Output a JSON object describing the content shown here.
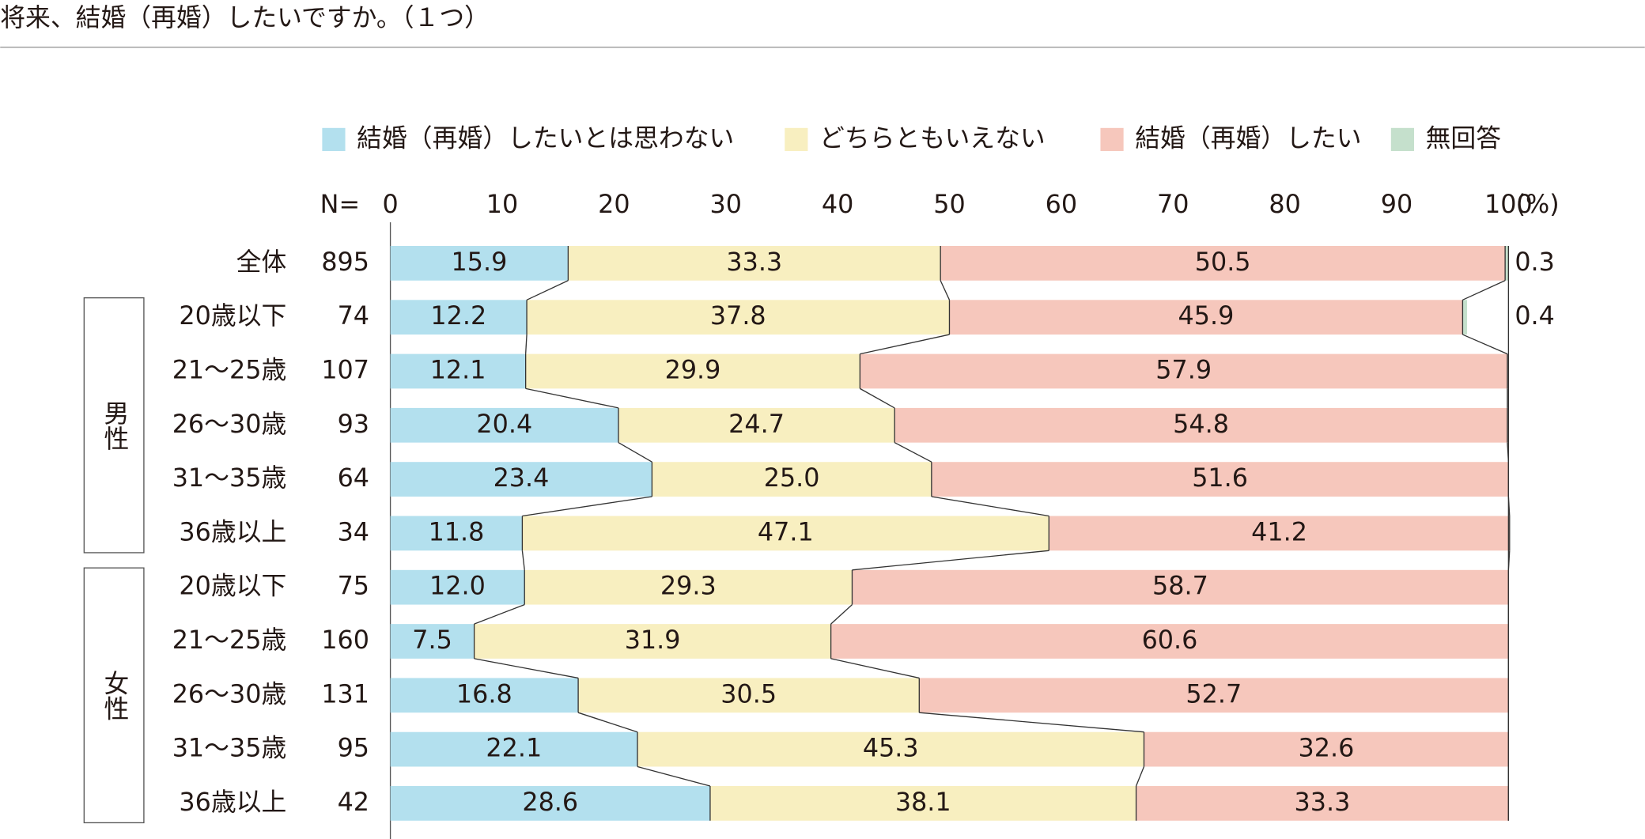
{
  "chart_data": {
    "type": "bar",
    "orientation": "horizontal",
    "stacked": true,
    "title": "将来、結婚（再婚）したいですか。（１つ）",
    "n_label": "N=",
    "x_unit": "(%)",
    "xlim": [
      0,
      100
    ],
    "xticks": [
      0,
      10,
      20,
      30,
      40,
      50,
      60,
      70,
      80,
      90,
      100
    ],
    "categories": [
      "全体",
      "20歳以下",
      "21～25歳",
      "26～30歳",
      "31～35歳",
      "36歳以上",
      "20歳以下",
      "21～25歳",
      "26～30歳",
      "31～35歳",
      "36歳以上"
    ],
    "groups": [
      null,
      "男性",
      "男性",
      "男性",
      "男性",
      "男性",
      "女性",
      "女性",
      "女性",
      "女性",
      "女性"
    ],
    "n": [
      895,
      74,
      107,
      93,
      64,
      34,
      75,
      160,
      131,
      95,
      42
    ],
    "series": [
      {
        "name": "結婚（再婚）したいとは思わない",
        "color": "#b3e0ee",
        "values": [
          15.9,
          12.2,
          12.1,
          20.4,
          23.4,
          11.8,
          12.0,
          7.5,
          16.8,
          22.1,
          28.6
        ],
        "value_labels": [
          "15.9",
          "12.2",
          "12.1",
          "20.4",
          "23.4",
          "11.8",
          "12.0",
          "7.5",
          "16.8",
          "22.1",
          "28.6"
        ]
      },
      {
        "name": "どちらともいえない",
        "color": "#f8efc0",
        "values": [
          33.3,
          37.8,
          29.9,
          24.7,
          25.0,
          47.1,
          29.3,
          31.9,
          30.5,
          45.3,
          38.1
        ],
        "value_labels": [
          "33.3",
          "37.8",
          "29.9",
          "24.7",
          "25.0",
          "47.1",
          "29.3",
          "31.9",
          "30.5",
          "45.3",
          "38.1"
        ]
      },
      {
        "name": "結婚（再婚）したい",
        "color": "#f6c7bc",
        "values": [
          50.5,
          45.9,
          57.9,
          54.8,
          51.6,
          41.2,
          58.7,
          60.6,
          52.7,
          32.6,
          33.3
        ]
      },
      {
        "name": "無回答",
        "color": "#c5e0cc",
        "values": [
          0.3,
          0.4,
          null,
          null,
          null,
          null,
          null,
          null,
          null,
          null,
          null
        ]
      }
    ]
  }
}
